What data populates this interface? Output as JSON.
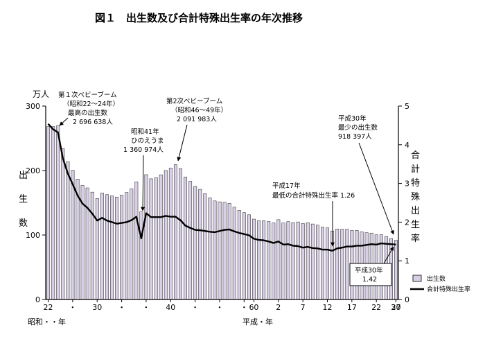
{
  "chart_data": {
    "type": "bar",
    "title": "図１　出生数及び合計特殊出生率の年次推移",
    "y_unit_label": "万人",
    "ylabel_chars": [
      "出",
      "生",
      "数"
    ],
    "y2label_chars": [
      "合",
      "計",
      "特",
      "殊",
      "出",
      "生",
      "率"
    ],
    "ylim": [
      0,
      300
    ],
    "y_ticks": [
      "0",
      "100",
      "200",
      "300"
    ],
    "y2lim": [
      0,
      5
    ],
    "y2_ticks": [
      "0",
      "1",
      "2",
      "3",
      "4",
      "5"
    ],
    "x_tick_labels": [
      "22",
      "・",
      "30",
      "・",
      "・",
      "40",
      "・",
      "・",
      "・",
      "60",
      "2",
      "7",
      "12",
      "17",
      "22",
      "27",
      "30"
    ],
    "x_era_left": "昭和・・年",
    "x_era_right": "平成・年",
    "categories": [
      "1947",
      "1948",
      "1949",
      "1950",
      "1951",
      "1952",
      "1953",
      "1954",
      "1955",
      "1956",
      "1957",
      "1958",
      "1959",
      "1960",
      "1961",
      "1962",
      "1963",
      "1964",
      "1965",
      "1966",
      "1967",
      "1968",
      "1969",
      "1970",
      "1971",
      "1972",
      "1973",
      "1974",
      "1975",
      "1976",
      "1977",
      "1978",
      "1979",
      "1980",
      "1981",
      "1982",
      "1983",
      "1984",
      "1985",
      "1986",
      "1987",
      "1988",
      "1989",
      "1990",
      "1991",
      "1992",
      "1993",
      "1994",
      "1995",
      "1996",
      "1997",
      "1998",
      "1999",
      "2000",
      "2001",
      "2002",
      "2003",
      "2004",
      "2005",
      "2006",
      "2007",
      "2008",
      "2009",
      "2010",
      "2011",
      "2012",
      "2013",
      "2014",
      "2015",
      "2016",
      "2017",
      "2018"
    ],
    "series": [
      {
        "name": "出生数",
        "axis": "left",
        "mark": "bar",
        "values": [
          268.0,
          268.2,
          269.7,
          233.8,
          213.8,
          200.5,
          186.8,
          176.9,
          173.1,
          166.5,
          156.7,
          165.3,
          162.6,
          160.6,
          158.9,
          161.9,
          166.0,
          171.7,
          182.4,
          136.1,
          193.6,
          187.2,
          188.9,
          193.4,
          200.1,
          203.9,
          209.2,
          203.0,
          190.1,
          183.3,
          175.5,
          170.9,
          164.3,
          157.7,
          152.9,
          151.5,
          150.9,
          149.0,
          143.2,
          138.3,
          134.7,
          131.4,
          124.7,
          122.2,
          122.3,
          120.9,
          118.8,
          123.8,
          118.7,
          120.7,
          119.2,
          120.3,
          117.8,
          119.1,
          117.1,
          115.4,
          112.4,
          111.1,
          106.3,
          109.3,
          109.0,
          109.1,
          107.0,
          107.1,
          105.1,
          103.7,
          103.0,
          100.4,
          100.6,
          97.7,
          94.6,
          91.8
        ]
      },
      {
        "name": "合計特殊出生率",
        "axis": "right",
        "mark": "line",
        "values": [
          4.54,
          4.4,
          4.32,
          3.65,
          3.26,
          2.98,
          2.69,
          2.48,
          2.37,
          2.22,
          2.04,
          2.11,
          2.04,
          2.0,
          1.96,
          1.98,
          2.0,
          2.05,
          2.14,
          1.58,
          2.23,
          2.13,
          2.13,
          2.13,
          2.16,
          2.14,
          2.14,
          2.05,
          1.91,
          1.85,
          1.8,
          1.79,
          1.77,
          1.75,
          1.74,
          1.77,
          1.8,
          1.81,
          1.76,
          1.72,
          1.69,
          1.66,
          1.57,
          1.54,
          1.53,
          1.5,
          1.46,
          1.5,
          1.42,
          1.43,
          1.39,
          1.38,
          1.34,
          1.36,
          1.33,
          1.32,
          1.29,
          1.29,
          1.26,
          1.32,
          1.34,
          1.37,
          1.37,
          1.39,
          1.39,
          1.41,
          1.43,
          1.42,
          1.45,
          1.44,
          1.43,
          1.42
        ]
      }
    ],
    "legend": {
      "position": "bottom-right",
      "bar_label": "出生数",
      "line_label": "合計特殊出生率"
    },
    "annotations": {
      "baby_boom_1": [
        "第１次ベビーブーム",
        "（昭和22～24年）",
        "最高の出生数",
        "2 696 638人"
      ],
      "hinoeuma": [
        "昭和41年",
        "ひのえうま",
        "1 360 974人"
      ],
      "baby_boom_2": [
        "第2次ベビーブーム",
        "（昭和46～49年）",
        "2 091 983人"
      ],
      "min_births": [
        "平成30年",
        "最少の出生数",
        "918 397人"
      ],
      "min_tfr": [
        "平成17年",
        "最低の合計特殊出生率 1.26"
      ],
      "tfr_2018": [
        "平成30年",
        "1.42"
      ]
    },
    "grid": false
  }
}
